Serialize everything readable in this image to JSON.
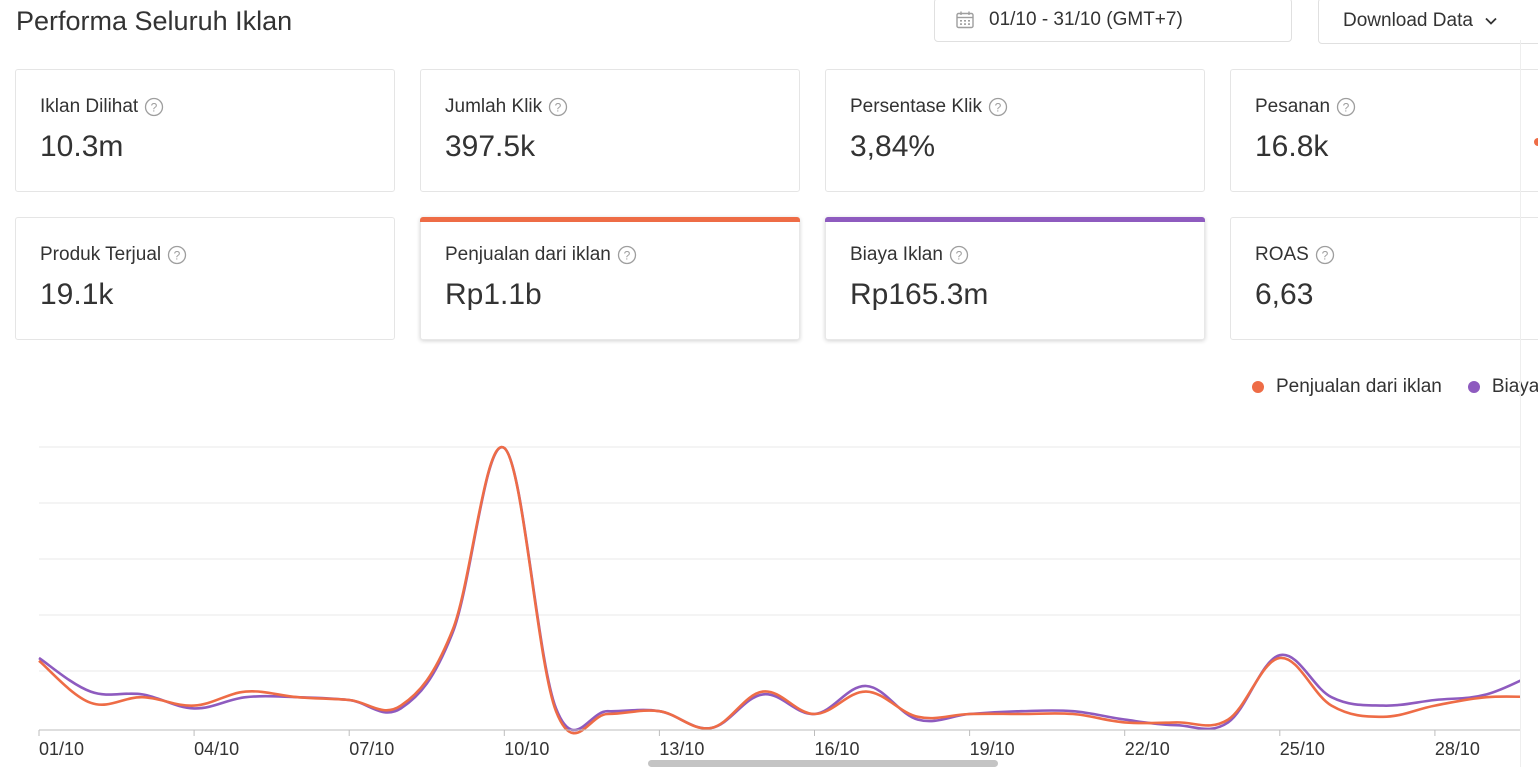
{
  "header": {
    "title": "Performa Seluruh Iklan",
    "date_range": "01/10 - 31/10 (GMT+7)",
    "download_label": "Download Data"
  },
  "metrics": [
    {
      "label": "Iklan Dilihat",
      "value": "10.3m"
    },
    {
      "label": "Jumlah Klik",
      "value": "397.5k"
    },
    {
      "label": "Persentase Klik",
      "value": "3,84%"
    },
    {
      "label": "Pesanan",
      "value": "16.8k"
    },
    {
      "label": "Produk Terjual",
      "value": "19.1k"
    },
    {
      "label": "Penjualan dari iklan",
      "value": "Rp1.1b",
      "selected": true,
      "color": "#ee6c46"
    },
    {
      "label": "Biaya Iklan",
      "value": "Rp165.3m",
      "selected": true,
      "color": "#8e5bbf"
    },
    {
      "label": "ROAS",
      "value": "6,63"
    }
  ],
  "colors": {
    "sales": "#ee6c46",
    "cost": "#8e5bbf",
    "grid": "#e8e8e8",
    "axis": "#bdbdbd",
    "text": "#333333"
  },
  "chart_data": {
    "type": "line",
    "x_tick_labels": [
      "01/10",
      "04/10",
      "07/10",
      "10/10",
      "13/10",
      "16/10",
      "19/10",
      "22/10",
      "25/10",
      "28/10"
    ],
    "x": [
      "01/10",
      "02/10",
      "03/10",
      "04/10",
      "05/10",
      "06/10",
      "07/10",
      "08/10",
      "09/10",
      "10/10",
      "11/10",
      "12/10",
      "13/10",
      "14/10",
      "15/10",
      "16/10",
      "17/10",
      "18/10",
      "19/10",
      "20/10",
      "21/10",
      "22/10",
      "23/10",
      "24/10",
      "25/10",
      "26/10",
      "27/10",
      "28/10",
      "29/10",
      "30/10"
    ],
    "ylim": [
      0,
      100
    ],
    "grid": true,
    "legend_position": "top-right",
    "series": [
      {
        "name": "Penjualan dari iklan",
        "values": [
          24,
          9,
          11,
          8,
          13,
          11,
          10,
          8,
          35,
          100,
          6,
          5,
          6,
          0,
          13,
          5,
          13,
          4,
          5,
          5,
          5,
          2,
          2,
          3,
          25,
          8,
          4,
          8,
          11,
          11
        ]
      },
      {
        "name": "Biaya Iklan",
        "values": [
          25,
          13,
          12,
          7,
          11,
          11,
          10,
          7,
          34,
          100,
          7,
          6,
          6,
          0,
          12,
          5,
          15,
          3,
          5,
          6,
          6,
          3,
          1,
          2,
          26,
          11,
          8,
          10,
          12,
          20
        ]
      }
    ]
  }
}
